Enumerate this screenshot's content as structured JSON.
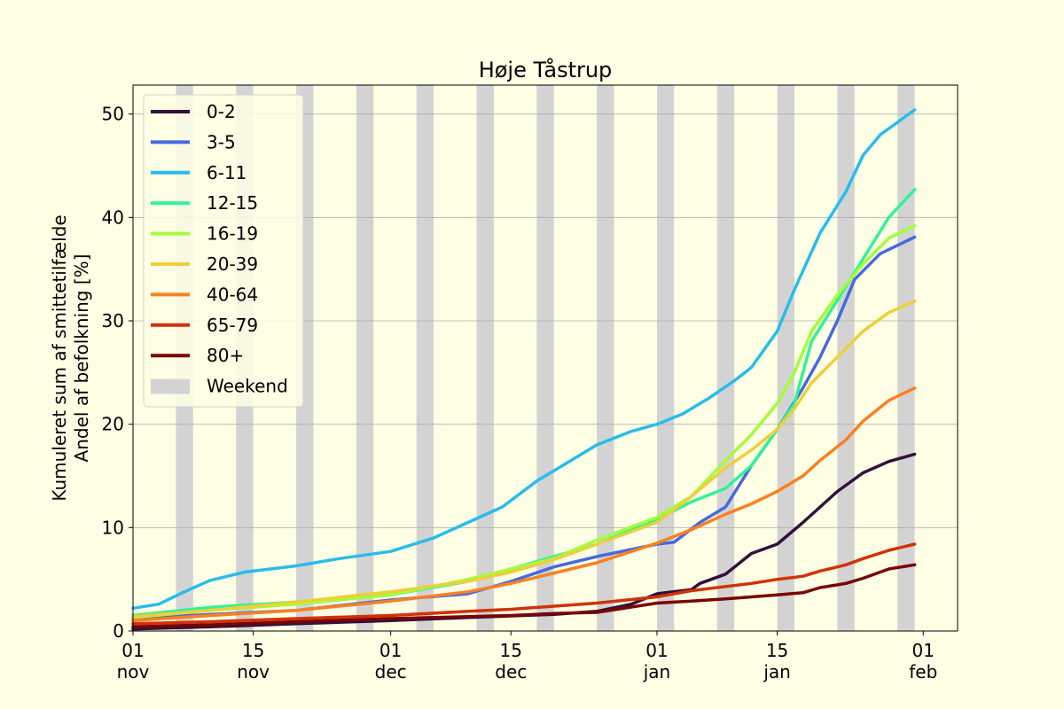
{
  "colors": {
    "figure_bg": "#ffffe5",
    "axes_bg": "#ffffe5",
    "weekend": "#d3d3d3",
    "grid": "#b0b0b0"
  },
  "chart_data": {
    "type": "line",
    "title": "Høje Tåstrup",
    "xlabel": "",
    "ylabel_lines": [
      "Kumuleret sum af smittetilfælde",
      "Andel af befolkning [%]"
    ],
    "x_range": [
      "2021-11-01",
      "2022-02-05"
    ],
    "ylim": [
      0,
      52.8
    ],
    "grid": "y",
    "legend_position": "upper-left",
    "x_ticks": [
      {
        "date": "2021-11-01",
        "label": [
          "01",
          "nov"
        ]
      },
      {
        "date": "2021-11-15",
        "label": [
          "15",
          "nov"
        ]
      },
      {
        "date": "2021-12-01",
        "label": [
          "01",
          "dec"
        ]
      },
      {
        "date": "2021-12-15",
        "label": [
          "15",
          "dec"
        ]
      },
      {
        "date": "2022-01-01",
        "label": [
          "01",
          "jan"
        ]
      },
      {
        "date": "2022-01-15",
        "label": [
          "15",
          "jan"
        ]
      },
      {
        "date": "2022-02-01",
        "label": [
          "01",
          "feb"
        ]
      }
    ],
    "y_ticks": [
      0,
      10,
      20,
      30,
      40,
      50
    ],
    "weekend_label": "Weekend",
    "weekend_starts": [
      "2021-11-06",
      "2021-11-13",
      "2021-11-20",
      "2021-11-27",
      "2021-12-04",
      "2021-12-11",
      "2021-12-18",
      "2021-12-25",
      "2022-01-01",
      "2022-01-08",
      "2022-01-15",
      "2022-01-22",
      "2022-01-29",
      "2022-02-05"
    ],
    "series": [
      {
        "name": "0-2",
        "color": "#30123b",
        "points": [
          [
            "2021-11-01",
            0.2
          ],
          [
            "2021-11-10",
            0.4
          ],
          [
            "2021-11-20",
            0.7
          ],
          [
            "2021-12-01",
            1.0
          ],
          [
            "2021-12-10",
            1.3
          ],
          [
            "2021-12-20",
            1.6
          ],
          [
            "2021-12-25",
            1.9
          ],
          [
            "2021-12-29",
            2.6
          ],
          [
            "2022-01-01",
            3.6
          ],
          [
            "2022-01-05",
            4.0
          ],
          [
            "2022-01-06",
            4.6
          ],
          [
            "2022-01-09",
            5.5
          ],
          [
            "2022-01-12",
            7.5
          ],
          [
            "2022-01-15",
            8.4
          ],
          [
            "2022-01-18",
            10.5
          ],
          [
            "2022-01-22",
            13.5
          ],
          [
            "2022-01-25",
            15.3
          ],
          [
            "2022-01-28",
            16.4
          ],
          [
            "2022-01-31",
            17.1
          ]
        ]
      },
      {
        "name": "3-5",
        "color": "#4669e0",
        "points": [
          [
            "2021-11-01",
            1.2
          ],
          [
            "2021-11-10",
            1.6
          ],
          [
            "2021-11-20",
            2.0
          ],
          [
            "2021-12-01",
            3.0
          ],
          [
            "2021-12-10",
            3.6
          ],
          [
            "2021-12-15",
            4.8
          ],
          [
            "2021-12-20",
            6.2
          ],
          [
            "2021-12-25",
            7.2
          ],
          [
            "2022-01-01",
            8.4
          ],
          [
            "2022-01-03",
            8.6
          ],
          [
            "2022-01-06",
            10.5
          ],
          [
            "2022-01-09",
            12.0
          ],
          [
            "2022-01-12",
            16.0
          ],
          [
            "2022-01-15",
            19.5
          ],
          [
            "2022-01-18",
            23.5
          ],
          [
            "2022-01-20",
            26.5
          ],
          [
            "2022-01-22",
            30.0
          ],
          [
            "2022-01-24",
            34.0
          ],
          [
            "2022-01-27",
            36.5
          ],
          [
            "2022-01-31",
            38.1
          ]
        ]
      },
      {
        "name": "6-11",
        "color": "#28bceb",
        "points": [
          [
            "2021-11-01",
            2.2
          ],
          [
            "2021-11-04",
            2.6
          ],
          [
            "2021-11-07",
            3.8
          ],
          [
            "2021-11-10",
            4.9
          ],
          [
            "2021-11-14",
            5.7
          ],
          [
            "2021-11-20",
            6.3
          ],
          [
            "2021-11-25",
            7.0
          ],
          [
            "2021-12-01",
            7.7
          ],
          [
            "2021-12-06",
            9.0
          ],
          [
            "2021-12-10",
            10.5
          ],
          [
            "2021-12-14",
            12.0
          ],
          [
            "2021-12-18",
            14.5
          ],
          [
            "2021-12-22",
            16.5
          ],
          [
            "2021-12-25",
            18.0
          ],
          [
            "2021-12-29",
            19.3
          ],
          [
            "2022-01-01",
            20.0
          ],
          [
            "2022-01-04",
            21.0
          ],
          [
            "2022-01-07",
            22.5
          ],
          [
            "2022-01-10",
            24.2
          ],
          [
            "2022-01-12",
            25.5
          ],
          [
            "2022-01-15",
            29.0
          ],
          [
            "2022-01-17",
            33.0
          ],
          [
            "2022-01-20",
            38.5
          ],
          [
            "2022-01-23",
            42.5
          ],
          [
            "2022-01-25",
            46.0
          ],
          [
            "2022-01-27",
            48.0
          ],
          [
            "2022-01-31",
            50.4
          ]
        ]
      },
      {
        "name": "12-15",
        "color": "#32f298",
        "points": [
          [
            "2021-11-01",
            1.5
          ],
          [
            "2021-11-10",
            2.3
          ],
          [
            "2021-11-20",
            2.8
          ],
          [
            "2021-12-01",
            3.5
          ],
          [
            "2021-12-10",
            4.8
          ],
          [
            "2021-12-15",
            6.0
          ],
          [
            "2021-12-20",
            7.2
          ],
          [
            "2021-12-25",
            8.4
          ],
          [
            "2022-01-01",
            10.8
          ],
          [
            "2022-01-05",
            12.5
          ],
          [
            "2022-01-09",
            13.8
          ],
          [
            "2022-01-12",
            16.0
          ],
          [
            "2022-01-15",
            19.5
          ],
          [
            "2022-01-17",
            22.0
          ],
          [
            "2022-01-19",
            28.0
          ],
          [
            "2022-01-22",
            32.0
          ],
          [
            "2022-01-25",
            36.0
          ],
          [
            "2022-01-28",
            40.0
          ],
          [
            "2022-01-31",
            42.7
          ]
        ]
      },
      {
        "name": "16-19",
        "color": "#a4fc3c",
        "points": [
          [
            "2021-11-01",
            1.3
          ],
          [
            "2021-11-10",
            2.0
          ],
          [
            "2021-11-20",
            2.6
          ],
          [
            "2021-12-01",
            3.5
          ],
          [
            "2021-12-10",
            5.0
          ],
          [
            "2021-12-15",
            6.0
          ],
          [
            "2021-12-20",
            7.0
          ],
          [
            "2021-12-25",
            8.8
          ],
          [
            "2022-01-01",
            11.0
          ],
          [
            "2022-01-05",
            13.0
          ],
          [
            "2022-01-09",
            16.5
          ],
          [
            "2022-01-12",
            19.0
          ],
          [
            "2022-01-15",
            22.0
          ],
          [
            "2022-01-17",
            25.0
          ],
          [
            "2022-01-19",
            29.0
          ],
          [
            "2022-01-22",
            32.5
          ],
          [
            "2022-01-25",
            35.5
          ],
          [
            "2022-01-28",
            38.0
          ],
          [
            "2022-01-31",
            39.2
          ]
        ]
      },
      {
        "name": "20-39",
        "color": "#eecf3a",
        "points": [
          [
            "2021-11-01",
            1.4
          ],
          [
            "2021-11-10",
            2.0
          ],
          [
            "2021-11-20",
            2.8
          ],
          [
            "2021-12-01",
            3.8
          ],
          [
            "2021-12-10",
            4.8
          ],
          [
            "2021-12-15",
            5.7
          ],
          [
            "2021-12-20",
            6.9
          ],
          [
            "2021-12-25",
            8.4
          ],
          [
            "2022-01-01",
            10.5
          ],
          [
            "2022-01-05",
            13.0
          ],
          [
            "2022-01-09",
            15.8
          ],
          [
            "2022-01-12",
            17.5
          ],
          [
            "2022-01-15",
            19.5
          ],
          [
            "2022-01-17",
            21.5
          ],
          [
            "2022-01-19",
            24.0
          ],
          [
            "2022-01-22",
            26.5
          ],
          [
            "2022-01-25",
            29.0
          ],
          [
            "2022-01-28",
            30.8
          ],
          [
            "2022-01-31",
            31.9
          ]
        ]
      },
      {
        "name": "40-64",
        "color": "#fb8022",
        "points": [
          [
            "2021-11-01",
            1.0
          ],
          [
            "2021-11-10",
            1.5
          ],
          [
            "2021-11-20",
            2.0
          ],
          [
            "2021-12-01",
            2.9
          ],
          [
            "2021-12-10",
            3.8
          ],
          [
            "2021-12-15",
            4.6
          ],
          [
            "2021-12-20",
            5.6
          ],
          [
            "2021-12-25",
            6.6
          ],
          [
            "2022-01-01",
            8.5
          ],
          [
            "2022-01-05",
            9.8
          ],
          [
            "2022-01-09",
            11.3
          ],
          [
            "2022-01-12",
            12.3
          ],
          [
            "2022-01-15",
            13.5
          ],
          [
            "2022-01-18",
            15.0
          ],
          [
            "2022-01-20",
            16.5
          ],
          [
            "2022-01-23",
            18.5
          ],
          [
            "2022-01-25",
            20.3
          ],
          [
            "2022-01-28",
            22.3
          ],
          [
            "2022-01-31",
            23.5
          ]
        ]
      },
      {
        "name": "65-79",
        "color": "#d23105",
        "points": [
          [
            "2021-11-01",
            0.7
          ],
          [
            "2021-11-10",
            0.9
          ],
          [
            "2021-11-20",
            1.2
          ],
          [
            "2021-12-01",
            1.5
          ],
          [
            "2021-12-10",
            1.9
          ],
          [
            "2021-12-15",
            2.1
          ],
          [
            "2021-12-20",
            2.4
          ],
          [
            "2021-12-25",
            2.7
          ],
          [
            "2022-01-01",
            3.3
          ],
          [
            "2022-01-05",
            3.9
          ],
          [
            "2022-01-09",
            4.3
          ],
          [
            "2022-01-12",
            4.6
          ],
          [
            "2022-01-15",
            5.0
          ],
          [
            "2022-01-18",
            5.3
          ],
          [
            "2022-01-20",
            5.8
          ],
          [
            "2022-01-23",
            6.4
          ],
          [
            "2022-01-25",
            7.0
          ],
          [
            "2022-01-28",
            7.8
          ],
          [
            "2022-01-31",
            8.4
          ]
        ]
      },
      {
        "name": "80+",
        "color": "#7a0403",
        "points": [
          [
            "2021-11-01",
            0.4
          ],
          [
            "2021-11-10",
            0.6
          ],
          [
            "2021-11-20",
            0.9
          ],
          [
            "2021-12-01",
            1.2
          ],
          [
            "2021-12-10",
            1.4
          ],
          [
            "2021-12-15",
            1.5
          ],
          [
            "2021-12-20",
            1.7
          ],
          [
            "2021-12-25",
            1.8
          ],
          [
            "2022-01-01",
            2.7
          ],
          [
            "2022-01-05",
            2.9
          ],
          [
            "2022-01-09",
            3.1
          ],
          [
            "2022-01-12",
            3.3
          ],
          [
            "2022-01-15",
            3.5
          ],
          [
            "2022-01-18",
            3.7
          ],
          [
            "2022-01-20",
            4.2
          ],
          [
            "2022-01-23",
            4.6
          ],
          [
            "2022-01-25",
            5.1
          ],
          [
            "2022-01-28",
            6.0
          ],
          [
            "2022-01-31",
            6.4
          ]
        ]
      }
    ]
  }
}
